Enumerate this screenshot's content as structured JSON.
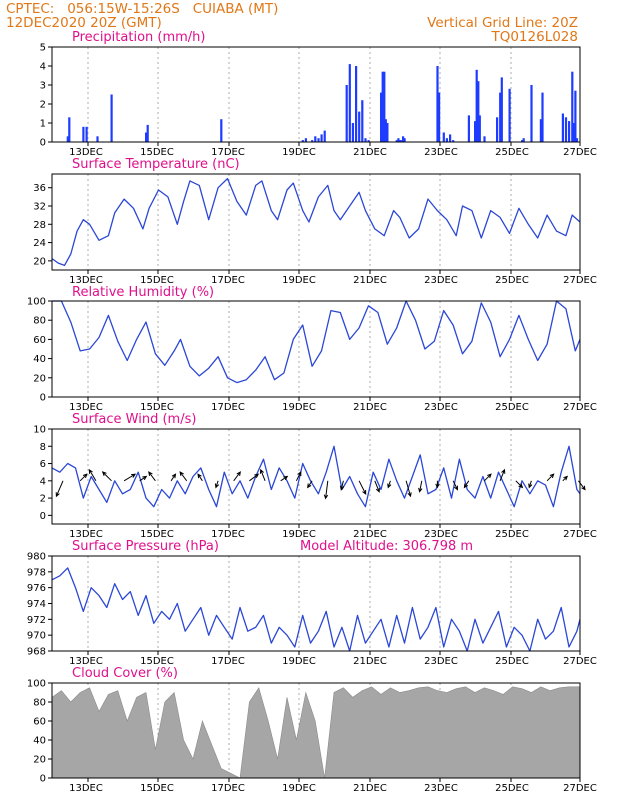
{
  "header": {
    "left_line1": "CPTEC:   056:15W-15:26S   CUIABA (MT)",
    "left_line2": "12DEC2020 20Z (GMT)",
    "right_line1": "Vertical Grid Line: 20Z",
    "right_line2": "TQ0126L028"
  },
  "colors": {
    "header_text": "#e07818",
    "panel_title": "#e0108c",
    "series_line": "#2b47d6",
    "precip_bar": "#1e3cff",
    "cloud_fill": "#a6a6a6",
    "wind_arrow": "#000000"
  },
  "chart_data": [
    {
      "type": "bar",
      "title": "Precipitation (mm/h)",
      "ylim": [
        0,
        5
      ],
      "yticks": [
        "0",
        "1",
        "2",
        "3",
        "4",
        "5"
      ],
      "xticks": [
        "13DEC",
        "15DEC",
        "17DEC",
        "19DEC",
        "21DEC",
        "23DEC",
        "25DEC",
        "27DEC"
      ],
      "x_unit": "days since 12DEC2020 20Z",
      "x": [
        0.5,
        0.55,
        1.0,
        1.1,
        1.45,
        1.9,
        3.0,
        3.05,
        5.4,
        8.0,
        8.1,
        8.3,
        8.4,
        8.5,
        8.6,
        8.7,
        9.4,
        9.5,
        9.6,
        9.7,
        9.8,
        9.9,
        10.0,
        10.1,
        10.5,
        10.55,
        10.6,
        10.65,
        10.7,
        11.0,
        11.05,
        11.1,
        11.15,
        11.2,
        11.25,
        12.3,
        12.35,
        12.5,
        12.6,
        12.7,
        12.8,
        13.3,
        13.5,
        13.55,
        13.6,
        13.65,
        13.8,
        14.2,
        14.3,
        14.35,
        14.6,
        15.0,
        15.05,
        15.3,
        15.6,
        15.65,
        16.3,
        16.4,
        16.5,
        16.6,
        16.65,
        16.7,
        16.75
      ],
      "values": [
        0.3,
        1.3,
        0.8,
        0.8,
        0.3,
        2.5,
        0.5,
        0.9,
        1.2,
        0.1,
        0.2,
        0.1,
        0.3,
        0.2,
        0.4,
        0.6,
        3.0,
        4.1,
        1.0,
        4.0,
        1.6,
        2.2,
        0.2,
        0.1,
        2.6,
        3.7,
        3.7,
        1.2,
        1.0,
        0.1,
        0.2,
        0.1,
        0.1,
        0.3,
        0.2,
        4.0,
        2.6,
        0.5,
        0.2,
        0.4,
        0.1,
        1.4,
        1.1,
        3.8,
        3.2,
        1.4,
        0.3,
        1.3,
        2.6,
        3.4,
        2.8,
        0.1,
        0.2,
        3.0,
        1.2,
        2.6,
        1.5,
        1.3,
        1.1,
        3.7,
        1.0,
        2.7,
        0.2
      ]
    },
    {
      "type": "line",
      "title": "Surface Temperature (nC)",
      "ylim": [
        18,
        39
      ],
      "yticks": [
        "20",
        "24",
        "28",
        "32",
        "36"
      ],
      "xticks": [
        "13DEC",
        "15DEC",
        "17DEC",
        "19DEC",
        "21DEC",
        "23DEC",
        "25DEC",
        "27DEC"
      ],
      "x_unit": "days since 12DEC2020 20Z",
      "x": [
        0,
        0.2,
        0.4,
        0.6,
        0.8,
        1.0,
        1.2,
        1.5,
        1.8,
        2.0,
        2.3,
        2.6,
        2.9,
        3.1,
        3.4,
        3.7,
        4.0,
        4.2,
        4.4,
        4.7,
        5.0,
        5.3,
        5.6,
        5.9,
        6.2,
        6.5,
        6.7,
        7.0,
        7.2,
        7.5,
        7.7,
        8.0,
        8.2,
        8.5,
        8.8,
        9.0,
        9.2,
        9.5,
        9.8,
        10.0,
        10.3,
        10.6,
        10.9,
        11.1,
        11.4,
        11.7,
        12.0,
        12.3,
        12.6,
        12.9,
        13.1,
        13.4,
        13.7,
        14.0,
        14.3,
        14.6,
        14.9,
        15.2,
        15.5,
        15.8,
        16.1,
        16.4,
        16.6,
        16.85
      ],
      "values": [
        20.5,
        19.5,
        19.0,
        21.5,
        26.5,
        29.0,
        28.0,
        24.5,
        25.5,
        30.5,
        33.5,
        31.5,
        27.0,
        31.5,
        35.5,
        34.0,
        28.0,
        33.0,
        37.5,
        36.5,
        29.0,
        36.0,
        38.0,
        33.0,
        30.0,
        36.5,
        37.5,
        31.0,
        29.0,
        35.5,
        37.0,
        31.0,
        28.5,
        34.0,
        36.5,
        31.0,
        29.0,
        32.0,
        35.0,
        31.0,
        27.0,
        25.5,
        31.0,
        29.5,
        25.0,
        27.0,
        33.5,
        31.0,
        29.0,
        25.5,
        32.0,
        31.0,
        25.0,
        31.0,
        29.5,
        26.0,
        31.5,
        28.0,
        25.0,
        30.0,
        26.5,
        25.5,
        30.0,
        28.5
      ]
    },
    {
      "type": "line",
      "title": "Relative Humidity (%)",
      "ylim": [
        0,
        100
      ],
      "yticks": [
        "0",
        "20",
        "40",
        "60",
        "80",
        "100"
      ],
      "xticks": [
        "13DEC",
        "15DEC",
        "17DEC",
        "19DEC",
        "21DEC",
        "23DEC",
        "25DEC",
        "27DEC"
      ],
      "x_unit": "days since 12DEC2020 20Z",
      "x": [
        0,
        0.3,
        0.6,
        0.9,
        1.2,
        1.5,
        1.8,
        2.1,
        2.4,
        2.7,
        3.0,
        3.3,
        3.6,
        3.9,
        4.1,
        4.4,
        4.7,
        5.0,
        5.3,
        5.6,
        5.9,
        6.2,
        6.5,
        6.8,
        7.1,
        7.4,
        7.7,
        8.0,
        8.3,
        8.6,
        8.9,
        9.2,
        9.5,
        9.8,
        10.1,
        10.4,
        10.7,
        11.0,
        11.3,
        11.6,
        11.9,
        12.2,
        12.5,
        12.8,
        13.1,
        13.4,
        13.7,
        14.0,
        14.3,
        14.6,
        14.9,
        15.2,
        15.5,
        15.8,
        16.1,
        16.4,
        16.7,
        16.85
      ],
      "values": [
        100,
        100,
        78,
        48,
        50,
        62,
        85,
        58,
        38,
        60,
        78,
        45,
        33,
        48,
        60,
        32,
        22,
        30,
        42,
        20,
        15,
        18,
        28,
        42,
        18,
        25,
        60,
        75,
        32,
        48,
        90,
        88,
        60,
        72,
        95,
        88,
        55,
        72,
        100,
        80,
        50,
        58,
        90,
        75,
        45,
        58,
        98,
        78,
        42,
        60,
        85,
        60,
        38,
        55,
        100,
        92,
        48,
        60
      ]
    },
    {
      "type": "line",
      "title": "Surface Wind (m/s)",
      "ylim": [
        -1,
        10
      ],
      "yticks": [
        "0",
        "2",
        "4",
        "6",
        "8",
        "10"
      ],
      "xticks": [
        "13DEC",
        "15DEC",
        "17DEC",
        "19DEC",
        "21DEC",
        "23DEC",
        "25DEC",
        "27DEC"
      ],
      "x_unit": "days since 12DEC2020 20Z",
      "x": [
        0,
        0.25,
        0.5,
        0.75,
        1.0,
        1.25,
        1.5,
        1.75,
        2.0,
        2.25,
        2.5,
        2.75,
        3.0,
        3.25,
        3.5,
        3.75,
        4.0,
        4.25,
        4.5,
        4.75,
        5.0,
        5.25,
        5.5,
        5.75,
        6.0,
        6.25,
        6.5,
        6.75,
        7.0,
        7.25,
        7.5,
        7.75,
        8.0,
        8.25,
        8.5,
        8.75,
        9.0,
        9.25,
        9.5,
        9.75,
        10.0,
        10.25,
        10.5,
        10.75,
        11.0,
        11.25,
        11.5,
        11.75,
        12.0,
        12.25,
        12.5,
        12.75,
        13.0,
        13.25,
        13.5,
        13.75,
        14.0,
        14.25,
        14.5,
        14.75,
        15.0,
        15.25,
        15.5,
        15.75,
        16.0,
        16.25,
        16.5,
        16.75,
        16.85
      ],
      "values": [
        5.5,
        5.0,
        6.0,
        5.5,
        2.0,
        4.5,
        3.0,
        1.5,
        4.0,
        2.5,
        3.0,
        5.0,
        2.0,
        1.0,
        3.0,
        2.0,
        4.0,
        2.5,
        4.5,
        5.5,
        3.0,
        1.0,
        5.0,
        2.5,
        4.0,
        2.0,
        4.5,
        6.5,
        3.0,
        5.5,
        4.0,
        2.0,
        6.0,
        4.0,
        2.5,
        5.0,
        8.0,
        3.0,
        4.5,
        2.5,
        1.0,
        5.0,
        3.0,
        6.5,
        4.0,
        2.0,
        4.5,
        7.0,
        2.5,
        3.0,
        5.5,
        2.0,
        6.5,
        3.0,
        2.0,
        4.5,
        2.0,
        5.0,
        3.0,
        1.0,
        4.0,
        2.5,
        4.0,
        3.5,
        1.0,
        5.0,
        8.0,
        3.0,
        2.5
      ]
    },
    {
      "type": "line",
      "title": "Surface Pressure (hPa)",
      "annotation": "Model Altitude: 306.798  m",
      "ylim": [
        968,
        980
      ],
      "yticks": [
        "968",
        "970",
        "972",
        "974",
        "976",
        "978",
        "980"
      ],
      "xticks": [
        "13DEC",
        "15DEC",
        "17DEC",
        "19DEC",
        "21DEC",
        "23DEC",
        "25DEC",
        "27DEC"
      ],
      "x_unit": "days since 12DEC2020 20Z",
      "x": [
        0,
        0.25,
        0.5,
        0.75,
        1.0,
        1.25,
        1.5,
        1.75,
        2.0,
        2.25,
        2.5,
        2.75,
        3.0,
        3.25,
        3.5,
        3.75,
        4.0,
        4.25,
        4.5,
        4.75,
        5.0,
        5.25,
        5.5,
        5.75,
        6.0,
        6.25,
        6.5,
        6.75,
        7.0,
        7.25,
        7.5,
        7.75,
        8.0,
        8.25,
        8.5,
        8.75,
        9.0,
        9.25,
        9.5,
        9.75,
        10.0,
        10.25,
        10.5,
        10.75,
        11.0,
        11.25,
        11.5,
        11.75,
        12.0,
        12.25,
        12.5,
        12.75,
        13.0,
        13.25,
        13.5,
        13.75,
        14.0,
        14.25,
        14.5,
        14.75,
        15.0,
        15.25,
        15.5,
        15.75,
        16.0,
        16.25,
        16.5,
        16.75,
        16.85
      ],
      "values": [
        977.0,
        977.5,
        978.5,
        976.0,
        973.0,
        976.0,
        975.0,
        973.5,
        976.5,
        974.5,
        975.5,
        972.5,
        975.0,
        971.5,
        973.0,
        972.0,
        974.0,
        970.5,
        972.0,
        973.5,
        970.0,
        972.5,
        971.0,
        969.5,
        973.5,
        970.5,
        971.0,
        972.5,
        969.0,
        971.0,
        970.0,
        968.5,
        972.5,
        969.0,
        970.5,
        973.0,
        968.5,
        971.0,
        968.0,
        972.5,
        969.0,
        970.5,
        972.0,
        968.5,
        972.5,
        969.0,
        973.5,
        969.5,
        971.0,
        973.5,
        968.5,
        972.0,
        970.5,
        968.0,
        972.0,
        969.0,
        971.0,
        973.0,
        968.5,
        971.0,
        970.0,
        968.0,
        972.0,
        969.5,
        970.5,
        973.5,
        968.5,
        970.5,
        972.0
      ]
    },
    {
      "type": "area",
      "title": "Cloud Cover (%)",
      "ylim": [
        0,
        100
      ],
      "yticks": [
        "0",
        "20",
        "40",
        "60",
        "80",
        "100"
      ],
      "xticks": [
        "13DEC",
        "15DEC",
        "17DEC",
        "19DEC",
        "21DEC",
        "23DEC",
        "25DEC",
        "27DEC"
      ],
      "x_unit": "days since 12DEC2020 20Z",
      "x": [
        0,
        0.3,
        0.6,
        0.9,
        1.2,
        1.5,
        1.8,
        2.1,
        2.4,
        2.7,
        3.0,
        3.3,
        3.6,
        3.9,
        4.2,
        4.5,
        4.8,
        5.1,
        5.4,
        5.7,
        6.0,
        6.3,
        6.6,
        6.9,
        7.2,
        7.5,
        7.8,
        8.1,
        8.4,
        8.7,
        9.0,
        9.3,
        9.6,
        9.9,
        10.2,
        10.5,
        10.8,
        11.1,
        11.4,
        11.7,
        12.0,
        12.3,
        12.6,
        12.9,
        13.2,
        13.5,
        13.8,
        14.1,
        14.4,
        14.7,
        15.0,
        15.3,
        15.6,
        15.9,
        16.2,
        16.5,
        16.85
      ],
      "values": [
        85,
        92,
        80,
        90,
        95,
        70,
        88,
        92,
        60,
        85,
        90,
        30,
        80,
        90,
        40,
        20,
        60,
        35,
        10,
        5,
        0,
        80,
        95,
        60,
        20,
        85,
        40,
        90,
        60,
        0,
        90,
        95,
        85,
        92,
        96,
        88,
        95,
        90,
        92,
        95,
        96,
        92,
        90,
        94,
        96,
        90,
        95,
        92,
        88,
        96,
        94,
        90,
        96,
        92,
        95,
        96,
        96
      ]
    }
  ],
  "wind_vectors": {
    "x": [
      0.35,
      0.9,
      1.4,
      1.9,
      2.3,
      2.8,
      3.3,
      3.8,
      4.3,
      4.8,
      5.3,
      5.8,
      6.3,
      6.8,
      7.3,
      7.8,
      8.3,
      8.8,
      9.3,
      9.8,
      10.3,
      10.8,
      11.3,
      11.8,
      12.3,
      12.8,
      13.3,
      13.8,
      14.3,
      14.8,
      15.3,
      15.8,
      16.3,
      16.8
    ],
    "u": [
      -3,
      3,
      -3,
      -4,
      5,
      3,
      -3,
      2,
      -3,
      -2,
      -1,
      3,
      4,
      -2,
      3,
      2,
      -2,
      -1,
      -1,
      3,
      2,
      -1,
      2,
      -1,
      0,
      2,
      -2,
      3,
      2,
      3,
      -1,
      3,
      2,
      3
    ],
    "v": [
      -7,
      3,
      5,
      4,
      3,
      2,
      4,
      3,
      4,
      3,
      -3,
      4,
      3,
      5,
      2,
      4,
      -3,
      -8,
      -4,
      -6,
      -5,
      -3,
      -7,
      -5,
      -3,
      -4,
      -3,
      3,
      5,
      -3,
      -3,
      3,
      2,
      -4
    ]
  }
}
